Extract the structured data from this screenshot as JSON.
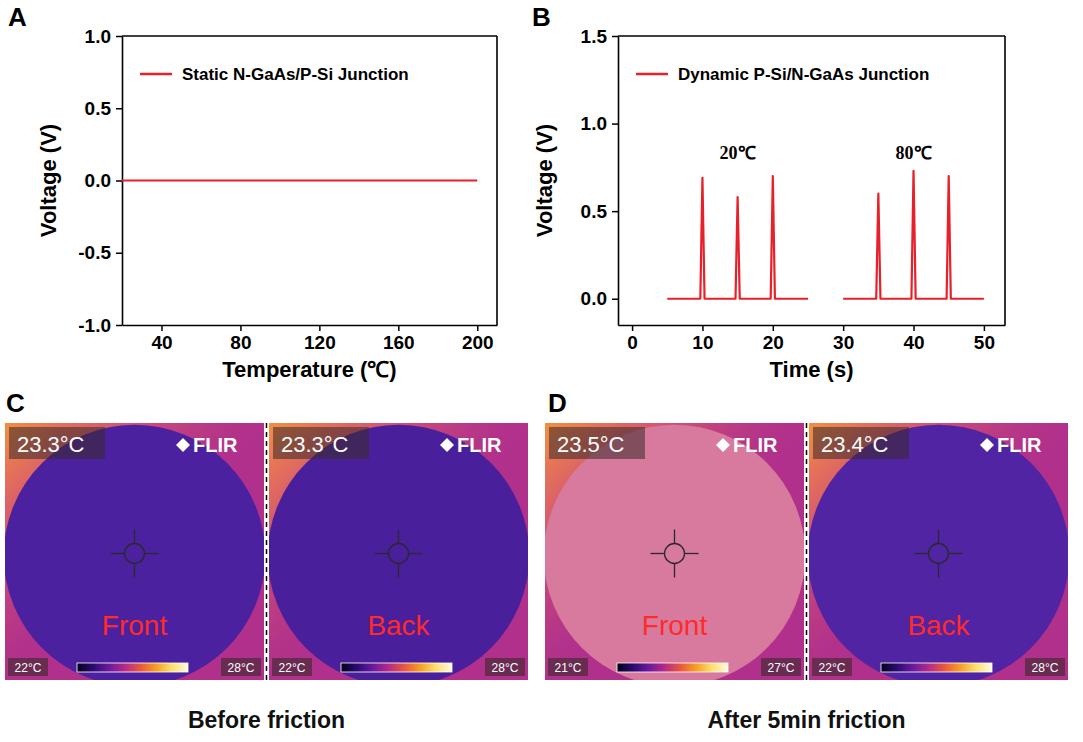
{
  "chart_data": [
    {
      "panel": "A",
      "type": "line",
      "xlabel": "Temperature (℃)",
      "ylabel": "Voltage (V)",
      "xlim": [
        20,
        210
      ],
      "xticks": [
        40,
        80,
        120,
        160,
        200
      ],
      "ylim": [
        -1,
        1
      ],
      "yticks": [
        {
          "value": -1,
          "label": "-1.0"
        },
        -0.5,
        {
          "value": 0,
          "label": "0.0"
        },
        0.5,
        {
          "value": 1,
          "label": "1.0"
        }
      ],
      "legend": "upper left",
      "x": [
        20,
        200
      ],
      "series": [
        {
          "name": "Static N-GaAs/P-Si Junction",
          "color": "#e8202a",
          "values": [
            0,
            0
          ]
        }
      ]
    },
    {
      "panel": "B",
      "type": "line",
      "xlabel": "Time (s)",
      "ylabel": "Voltage (V)",
      "xlim": [
        -2,
        53
      ],
      "xticks": [
        0,
        10,
        20,
        30,
        40,
        50
      ],
      "ylim": [
        -0.15,
        1.5
      ],
      "yticks": [
        {
          "value": 0,
          "label": "0.0"
        },
        0.5,
        {
          "value": 1,
          "label": "1.0"
        },
        1.5
      ],
      "legend": "upper left",
      "x": [
        5,
        9.7,
        10,
        10.3,
        14.7,
        15,
        15.3,
        19.7,
        20,
        20.3,
        25,
        27.5,
        30,
        34.7,
        35,
        35.3,
        39.7,
        40,
        40.3,
        44.7,
        45,
        45.3,
        50
      ],
      "series": [
        {
          "name": "Dynamic P-Si/N-GaAs Junction",
          "color": "#e8202a",
          "values": [
            0,
            0,
            0.69,
            0,
            0,
            0.58,
            0,
            0,
            0.7,
            0,
            0,
            null,
            0,
            0,
            0.6,
            0,
            0,
            0.73,
            0,
            0,
            0.7,
            0,
            0
          ]
        }
      ],
      "annotations": [
        {
          "text": "20℃",
          "x": 15,
          "y": 0.8
        },
        {
          "text": "80℃",
          "x": 40,
          "y": 0.8
        }
      ]
    }
  ],
  "thermal_images": [
    {
      "panel": "C",
      "caption": "Before friction",
      "views": [
        {
          "label": "Front",
          "temperature": "23.3°C",
          "brand": "FLIR",
          "scale_min": "22°C",
          "scale_max": "28°C",
          "color": "#4b21a0"
        },
        {
          "label": "Back",
          "temperature": "23.3°C",
          "brand": "FLIR",
          "scale_min": "22°C",
          "scale_max": "28°C",
          "color": "#4a1f9c"
        }
      ]
    },
    {
      "panel": "D",
      "caption": "After 5min friction",
      "views": [
        {
          "label": "Front",
          "temperature": "23.5°C",
          "brand": "FLIR",
          "scale_min": "21°C",
          "scale_max": "27°C",
          "color": "#d77a9e"
        },
        {
          "label": "Back",
          "temperature": "23.4°C",
          "brand": "FLIR",
          "scale_min": "22°C",
          "scale_max": "28°C",
          "color": "#5024a2"
        }
      ]
    }
  ]
}
